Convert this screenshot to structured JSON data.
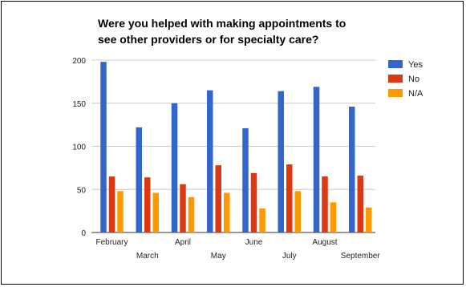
{
  "chart_data": {
    "type": "bar",
    "title_lines": [
      "Were you helped with making appointments to",
      "see other providers or for specialty care?"
    ],
    "categories": [
      "February",
      "March",
      "April",
      "May",
      "June",
      "July",
      "August",
      "September"
    ],
    "series": [
      {
        "name": "Yes",
        "color": "#3366cc",
        "values": [
          198,
          122,
          150,
          165,
          121,
          164,
          169,
          146
        ]
      },
      {
        "name": "No",
        "color": "#dc3912",
        "values": [
          65,
          64,
          56,
          78,
          69,
          79,
          65,
          66
        ]
      },
      {
        "name": "N/A",
        "color": "#ff9900",
        "values": [
          48,
          46,
          41,
          46,
          28,
          48,
          35,
          29
        ]
      }
    ],
    "ylim": [
      0,
      200
    ],
    "yticks": [
      0,
      50,
      100,
      150,
      200
    ],
    "grid": true,
    "legend": "right"
  }
}
